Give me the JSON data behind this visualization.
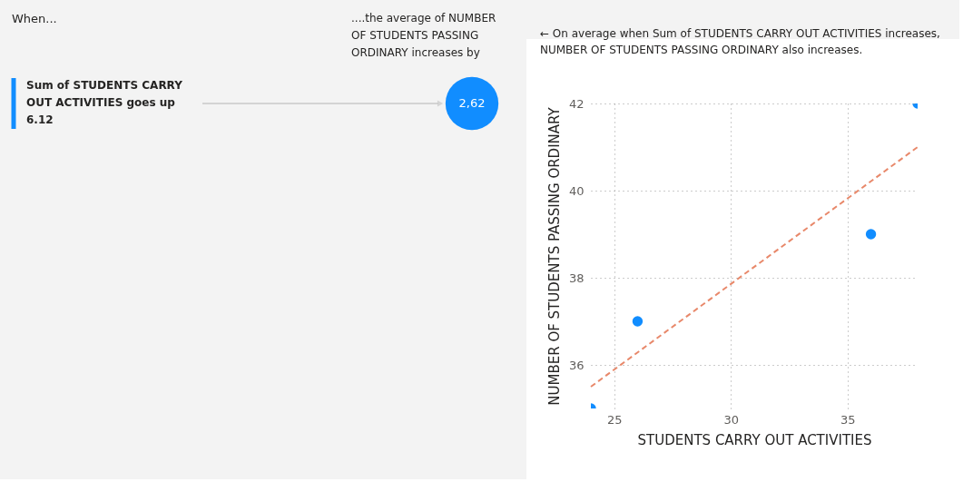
{
  "chart_data": [
    {
      "type": "other",
      "title": "When...",
      "annotations": [
        "....the average of NUMBER OF STUDENTS PASSING ORDINARY increases by"
      ],
      "categories": [
        "Sum of STUDENTS CARRY OUT ACTIVITIES goes up 6.12"
      ],
      "values": [
        2.62
      ],
      "value_labels": [
        "2,62"
      ],
      "colors": [
        "#118dff"
      ]
    },
    {
      "type": "scatter",
      "title": "← On average when Sum of STUDENTS CARRY OUT ACTIVITIES increases, NUMBER OF STUDENTS PASSING ORDINARY also increases.",
      "xlabel": "STUDENTS CARRY OUT ACTIVITIES",
      "ylabel": "NUMBER OF STUDENTS PASSING ORDINARY",
      "xlim": [
        24,
        38
      ],
      "ylim": [
        35,
        42
      ],
      "xticks": [
        25,
        30,
        35
      ],
      "yticks": [
        36,
        38,
        40,
        42
      ],
      "grid": true,
      "series": [
        {
          "marker": "circle",
          "color": "#118dff",
          "x": [
            24,
            26,
            36,
            38
          ],
          "values": [
            35,
            37,
            39,
            42
          ]
        },
        {
          "type": "line",
          "marker": "none",
          "color": "#e8886a",
          "line_style": "dashed",
          "x": [
            24,
            38
          ],
          "values": [
            35.5,
            41.0
          ]
        }
      ]
    }
  ]
}
